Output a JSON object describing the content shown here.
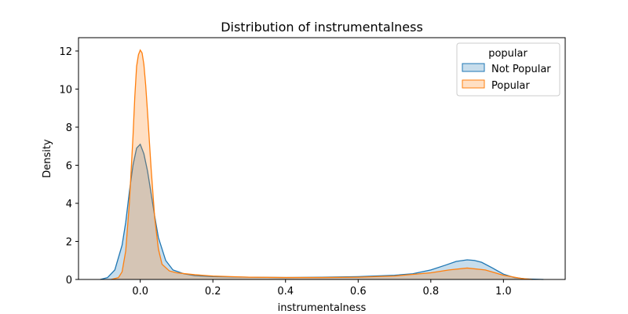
{
  "chart_data": {
    "type": "area",
    "title": "Distribution of instrumentalness",
    "xlabel": "instrumentalness",
    "ylabel": "Density",
    "xlim": [
      -0.17,
      1.17
    ],
    "ylim": [
      0,
      12.7
    ],
    "xticks": [
      0.0,
      0.2,
      0.4,
      0.6,
      0.8,
      1.0
    ],
    "xtick_labels": [
      "0.0",
      "0.2",
      "0.4",
      "0.6",
      "0.8",
      "1.0"
    ],
    "yticks": [
      0,
      2,
      4,
      6,
      8,
      10,
      12
    ],
    "ytick_labels": [
      "0",
      "2",
      "4",
      "6",
      "8",
      "10",
      "12"
    ],
    "grid": false,
    "legend": {
      "title": "popular",
      "placement": "top-right"
    },
    "series": [
      {
        "name": "Not Popular",
        "color": "#1f77b4",
        "x": [
          -0.11,
          -0.09,
          -0.07,
          -0.05,
          -0.04,
          -0.03,
          -0.02,
          -0.01,
          0.0,
          0.01,
          0.02,
          0.03,
          0.04,
          0.05,
          0.07,
          0.09,
          0.12,
          0.15,
          0.2,
          0.3,
          0.4,
          0.5,
          0.6,
          0.7,
          0.75,
          0.8,
          0.84,
          0.87,
          0.9,
          0.92,
          0.94,
          0.97,
          1.0,
          1.03,
          1.06,
          1.11
        ],
        "values": [
          0.0,
          0.1,
          0.5,
          1.8,
          3.0,
          4.6,
          6.0,
          6.9,
          7.1,
          6.6,
          5.7,
          4.5,
          3.3,
          2.2,
          1.0,
          0.5,
          0.3,
          0.2,
          0.15,
          0.12,
          0.1,
          0.12,
          0.15,
          0.22,
          0.3,
          0.5,
          0.75,
          0.95,
          1.03,
          1.0,
          0.9,
          0.6,
          0.28,
          0.1,
          0.03,
          0.0
        ]
      },
      {
        "name": "Popular",
        "color": "#ff7f0e",
        "x": [
          -0.08,
          -0.06,
          -0.05,
          -0.04,
          -0.03,
          -0.02,
          -0.015,
          -0.01,
          -0.005,
          0.0,
          0.005,
          0.01,
          0.015,
          0.02,
          0.03,
          0.04,
          0.05,
          0.06,
          0.08,
          0.1,
          0.15,
          0.2,
          0.3,
          0.4,
          0.5,
          0.6,
          0.7,
          0.8,
          0.85,
          0.9,
          0.95,
          1.0,
          1.05,
          1.08
        ],
        "values": [
          0.0,
          0.1,
          0.4,
          1.5,
          4.0,
          7.5,
          9.6,
          11.2,
          11.8,
          12.05,
          11.9,
          11.3,
          10.2,
          8.8,
          5.8,
          3.2,
          1.6,
          0.8,
          0.45,
          0.35,
          0.25,
          0.18,
          0.12,
          0.1,
          0.1,
          0.12,
          0.18,
          0.35,
          0.5,
          0.6,
          0.5,
          0.22,
          0.05,
          0.0
        ]
      }
    ]
  }
}
